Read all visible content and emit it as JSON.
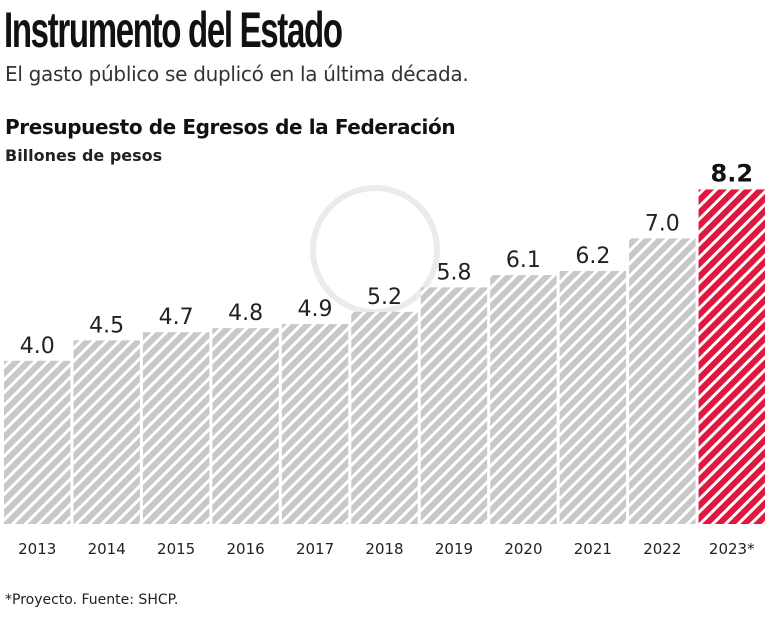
{
  "header": {
    "title": "Instrumento del Estado",
    "subtitle": "El gasto público se duplicó en la última década."
  },
  "chart_data": {
    "type": "bar",
    "title": "Presupuesto de Egresos de la Federación",
    "ylabel": "Billones de pesos",
    "categories": [
      "2013",
      "2014",
      "2015",
      "2016",
      "2017",
      "2018",
      "2019",
      "2020",
      "2021",
      "2022",
      "2023*"
    ],
    "values": [
      4.0,
      4.5,
      4.7,
      4.8,
      4.9,
      5.2,
      5.8,
      6.1,
      6.2,
      7.0,
      8.2
    ],
    "value_labels": [
      "4.0",
      "4.5",
      "4.7",
      "4.8",
      "4.9",
      "5.2",
      "5.8",
      "6.1",
      "6.2",
      "7.0",
      "8.2"
    ],
    "ylim": [
      0,
      8.5
    ],
    "grid": false,
    "highlight_index": 10,
    "colors": {
      "bars": "#c8c8c8",
      "highlight": "#e0173f",
      "stripe": "#ffffff"
    },
    "pattern": "diagonal-stripes"
  },
  "footer": {
    "note": "*Proyecto. Fuente: SHCP."
  }
}
